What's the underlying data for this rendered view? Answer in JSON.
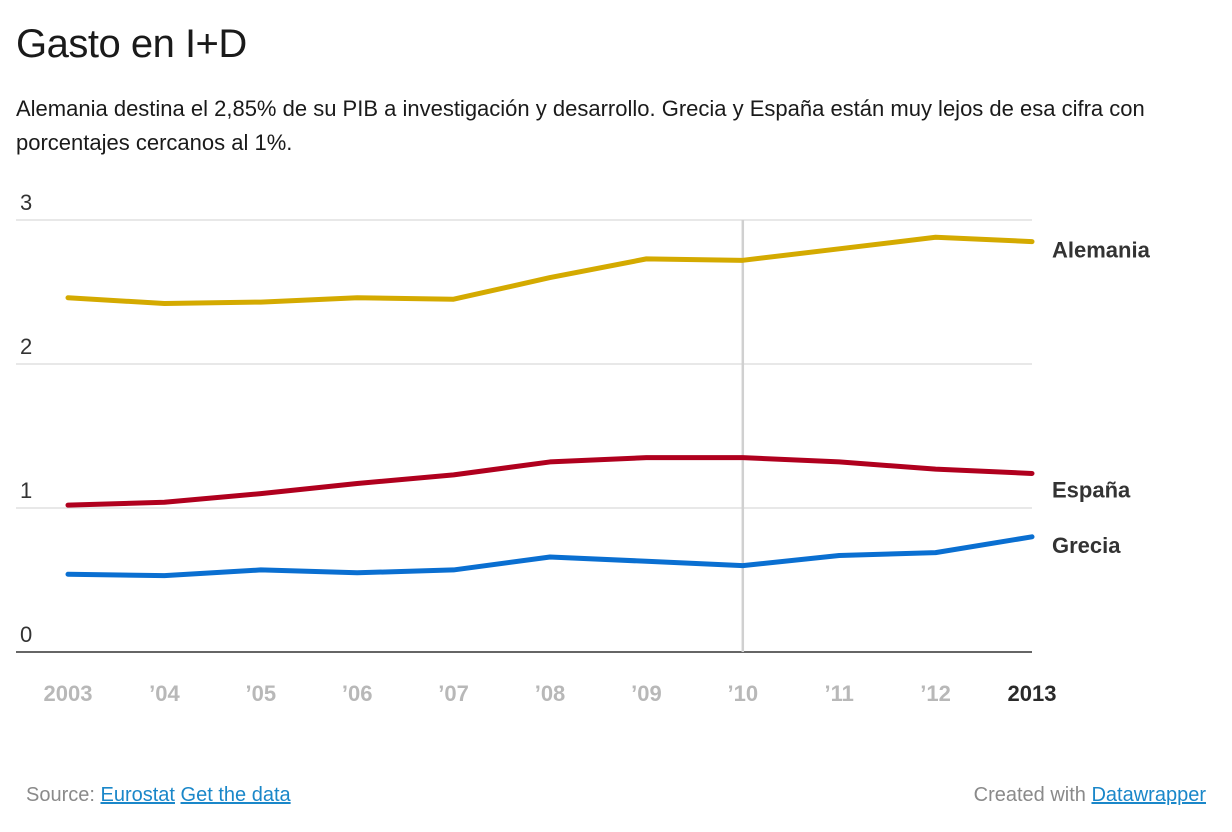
{
  "title": "Gasto en I+D",
  "subtitle": "Alemania destina el 2,85% de su PIB a investigación y desarrollo. Grecia y España están muy lejos de esa cifra con porcentajes cercanos al 1%.",
  "footer": {
    "source_label": "Source:",
    "source_link": "Eurostat",
    "data_link": "Get the data",
    "created_label": "Created with",
    "created_link": "Datawrapper"
  },
  "colors": {
    "Alemania": "#d4aa00",
    "España": "#b0001e",
    "Grecia": "#0a6fd1",
    "grid": "#d9d9d9",
    "axis": "#333333",
    "tick_muted": "#b8b8b8",
    "tick_strong": "#2a2a2a",
    "highlight_line": "#d0d0d0"
  },
  "chart_data": {
    "type": "line",
    "x": [
      2003,
      2004,
      2005,
      2006,
      2007,
      2008,
      2009,
      2010,
      2011,
      2012,
      2013
    ],
    "x_tick_labels": [
      "2003",
      "’04",
      "’05",
      "’06",
      "’07",
      "’08",
      "’09",
      "’10",
      "’11",
      "’12",
      "2013"
    ],
    "y_ticks": [
      "3",
      "2",
      "1",
      "0"
    ],
    "ylim": [
      0,
      3
    ],
    "grid": true,
    "highlight_x": 2010,
    "series": [
      {
        "name": "Alemania",
        "values": [
          2.46,
          2.42,
          2.43,
          2.46,
          2.45,
          2.6,
          2.73,
          2.72,
          2.8,
          2.88,
          2.85
        ]
      },
      {
        "name": "España",
        "values": [
          1.02,
          1.04,
          1.1,
          1.17,
          1.23,
          1.32,
          1.35,
          1.35,
          1.32,
          1.27,
          1.24
        ]
      },
      {
        "name": "Grecia",
        "values": [
          0.54,
          0.53,
          0.57,
          0.55,
          0.57,
          0.66,
          0.63,
          0.6,
          0.67,
          0.69,
          0.8
        ]
      }
    ]
  }
}
